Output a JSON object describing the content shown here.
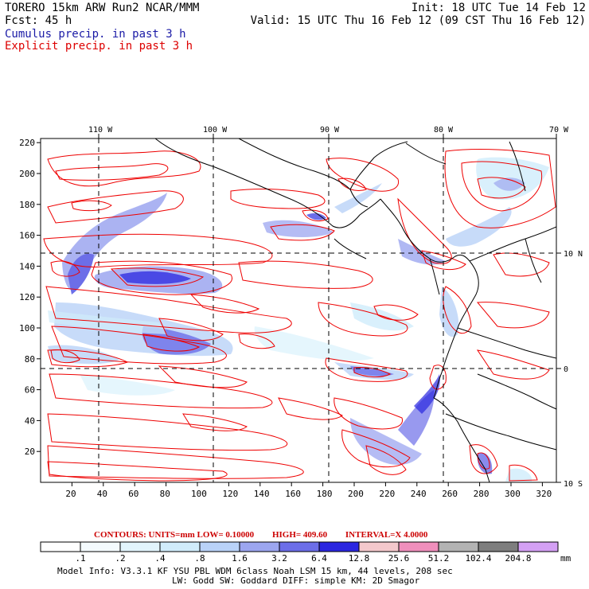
{
  "header": {
    "left_line1": "TORERO  15km ARW   Run2    NCAR/MMM",
    "left_line2": "Fcst:   45 h",
    "right_line1": "Init: 18 UTC Tue 14 Feb 12",
    "right_line2": "Valid: 15 UTC Thu 16 Feb 12 (09 CST Thu 16 Feb 12)",
    "field1": "Cumulus precip. in past 3 h",
    "field2": "Explicit precip. in past 3 h",
    "field1_color": "#1a1aa6",
    "field2_color": "#dd0000"
  },
  "map": {
    "lon_labels": [
      "110 W",
      "100 W",
      "90 W",
      "80 W",
      "70 W"
    ],
    "lat_labels": [
      "10 N",
      "0",
      "10 S"
    ],
    "x_ticks": [
      "20",
      "40",
      "60",
      "80",
      "100",
      "120",
      "140",
      "160",
      "180",
      "200",
      "220",
      "240",
      "260",
      "280",
      "300",
      "320"
    ],
    "y_ticks": [
      "220",
      "200",
      "180",
      "160",
      "140",
      "120",
      "100",
      "80",
      "60",
      "40",
      "20"
    ],
    "contour_color": "#ee0000",
    "land_outline_color": "#000000"
  },
  "contours_info": {
    "units": "CONTOURS:  UNITS=mm  LOW= 0.10000",
    "high": "HIGH=  409.60",
    "interval": "INTERVAL=X  4.0000"
  },
  "legend": {
    "values": [
      ".1",
      ".2",
      ".4",
      ".8",
      "1.6",
      "3.2",
      "6.4",
      "12.8",
      "25.6",
      "51.2",
      "102.4",
      "204.8"
    ],
    "unit": "mm",
    "colors": [
      "#ffffff",
      "#f4fbfe",
      "#e2f5fd",
      "#d0ecfb",
      "#b9d2f8",
      "#9ca6f0",
      "#6c6ee8",
      "#2a26e0",
      "#f4c8cc",
      "#f08fbc",
      "#b3b3b3",
      "#7e7e7e",
      "#d4a0f4"
    ]
  },
  "footer": {
    "line1": "Model Info: V3.3.1   KF     YSU PBL  WDM 6class  Noah LSM  15 km,   44 levels,  208 sec",
    "line2": "LW: Godd SW: Goddard DIFF: simple KM: 2D Smagor"
  }
}
